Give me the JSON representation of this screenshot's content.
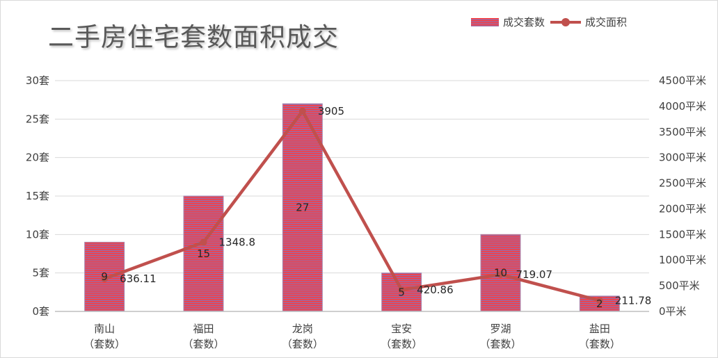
{
  "chart_data": {
    "type": "bar",
    "title": "二手房住宅套数面积成交",
    "categories": [
      "南山\n（套数）",
      "福田\n（套数）",
      "龙岗\n（套数）",
      "宝安\n（套数）",
      "罗湖\n（套数）",
      "盐田\n（套数）"
    ],
    "series": [
      {
        "name": "成交套数",
        "type": "bar",
        "axis": "left",
        "values": [
          9,
          15,
          27,
          5,
          10,
          2
        ],
        "labels": [
          "9",
          "15",
          "27",
          "5",
          "10",
          "2"
        ],
        "colors": [
          "#ff3b3b",
          "#9b6aa6"
        ]
      },
      {
        "name": "成交面积",
        "type": "line",
        "axis": "right",
        "values": [
          636.11,
          1348.8,
          3905,
          420.86,
          719.07,
          211.78
        ],
        "labels": [
          "636.11",
          "1348.8",
          "3905",
          "420.86",
          "719.07",
          "211.78"
        ],
        "color": "#c0504d"
      }
    ],
    "y_left": {
      "range": [
        0,
        30
      ],
      "ticks": [
        0,
        5,
        10,
        15,
        20,
        25,
        30
      ],
      "tick_labels": [
        "0套",
        "5套",
        "10套",
        "15套",
        "20套",
        "25套",
        "30套"
      ]
    },
    "y_right": {
      "range": [
        0,
        4500
      ],
      "ticks": [
        0,
        500,
        1000,
        1500,
        2000,
        2500,
        3000,
        3500,
        4000,
        4500
      ],
      "tick_labels": [
        "0平米",
        "500平米",
        "1000平米",
        "1500平米",
        "2000平米",
        "2500平米",
        "3000平米",
        "3500平米",
        "4000平米",
        "4500平米"
      ]
    },
    "grid": true,
    "legend_position": "top-right"
  }
}
